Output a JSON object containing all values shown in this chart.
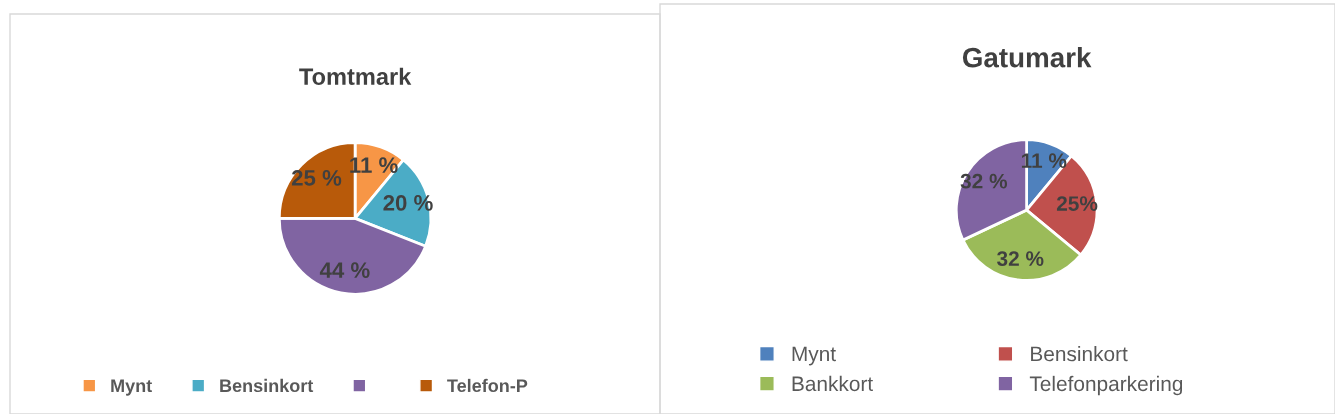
{
  "chart_data": [
    {
      "type": "pie",
      "title": "Tomtmark",
      "categories": [
        "Mynt",
        "Bensinkort",
        null,
        "Telefon-P"
      ],
      "values": [
        11,
        20,
        44,
        25
      ],
      "colors": [
        "#f79646",
        "#4bacc6",
        "#8064a2",
        "#b85a0a"
      ],
      "value_labels": [
        "11 %",
        "20 %",
        "44 %",
        "25 %"
      ],
      "legend": "bottom"
    },
    {
      "type": "pie",
      "title": "Gatumark",
      "categories": [
        "Mynt",
        "Bensinkort",
        "Bankkort",
        "Telefonparkering"
      ],
      "values": [
        11,
        25,
        32,
        32
      ],
      "colors": [
        "#4f81bd",
        "#c0504d",
        "#9bbb59",
        "#8064a2"
      ],
      "value_labels": [
        "11 %",
        "25%",
        "32 %",
        "32 %"
      ],
      "legend": "bottom"
    }
  ]
}
